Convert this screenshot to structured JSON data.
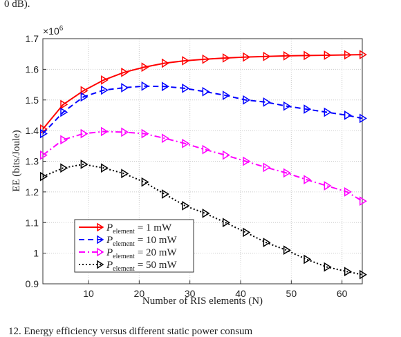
{
  "chart_data": {
    "type": "line",
    "caption_top": "0 dB).",
    "caption_bottom": "12.   Energy efficiency versus different static power consum",
    "xlabel": "Number of RIS elements (N)",
    "ylabel": "EE (bits/Joule)",
    "y_scale_base": "×10",
    "y_scale_exponent": "6",
    "x": [
      1,
      5,
      9,
      13,
      17,
      21,
      25,
      29,
      33,
      37,
      41,
      45,
      49,
      53,
      57,
      61,
      64
    ],
    "xlim": [
      1,
      64
    ],
    "xticks": [
      10,
      20,
      30,
      40,
      50,
      60
    ],
    "ylim": [
      0.9,
      1.7
    ],
    "yticks": [
      0.9,
      1,
      1.1,
      1.2,
      1.3,
      1.4,
      1.5,
      1.6,
      1.7
    ],
    "grid": true,
    "legend": "lower left",
    "series": [
      {
        "name_symbol": "P",
        "name_subscript": "element",
        "name_rest": "= 1 mW",
        "color": "#ff0000",
        "dash": "",
        "values": [
          1.405,
          1.485,
          1.53,
          1.565,
          1.59,
          1.607,
          1.62,
          1.628,
          1.633,
          1.637,
          1.64,
          1.642,
          1.644,
          1.645,
          1.646,
          1.647,
          1.648
        ]
      },
      {
        "name_symbol": "P",
        "name_subscript": "element",
        "name_rest": "= 10 mW",
        "color": "#0000ff",
        "dash": "8,5",
        "values": [
          1.39,
          1.46,
          1.51,
          1.532,
          1.54,
          1.545,
          1.544,
          1.538,
          1.527,
          1.515,
          1.5,
          1.493,
          1.48,
          1.47,
          1.46,
          1.45,
          1.44
        ]
      },
      {
        "name_symbol": "P",
        "name_subscript": "element",
        "name_rest": "= 20 mW",
        "color": "#ff00ff",
        "dash": "9,4,2,4",
        "values": [
          1.32,
          1.37,
          1.39,
          1.397,
          1.395,
          1.39,
          1.375,
          1.358,
          1.338,
          1.32,
          1.3,
          1.28,
          1.262,
          1.24,
          1.22,
          1.2,
          1.17
        ]
      },
      {
        "name_symbol": "P",
        "name_subscript": "element",
        "name_rest": "= 50 mW",
        "color": "#000000",
        "dash": "2,3",
        "values": [
          1.25,
          1.278,
          1.29,
          1.278,
          1.26,
          1.232,
          1.193,
          1.155,
          1.13,
          1.1,
          1.068,
          1.035,
          1.01,
          0.98,
          0.955,
          0.94,
          0.93
        ]
      }
    ]
  }
}
